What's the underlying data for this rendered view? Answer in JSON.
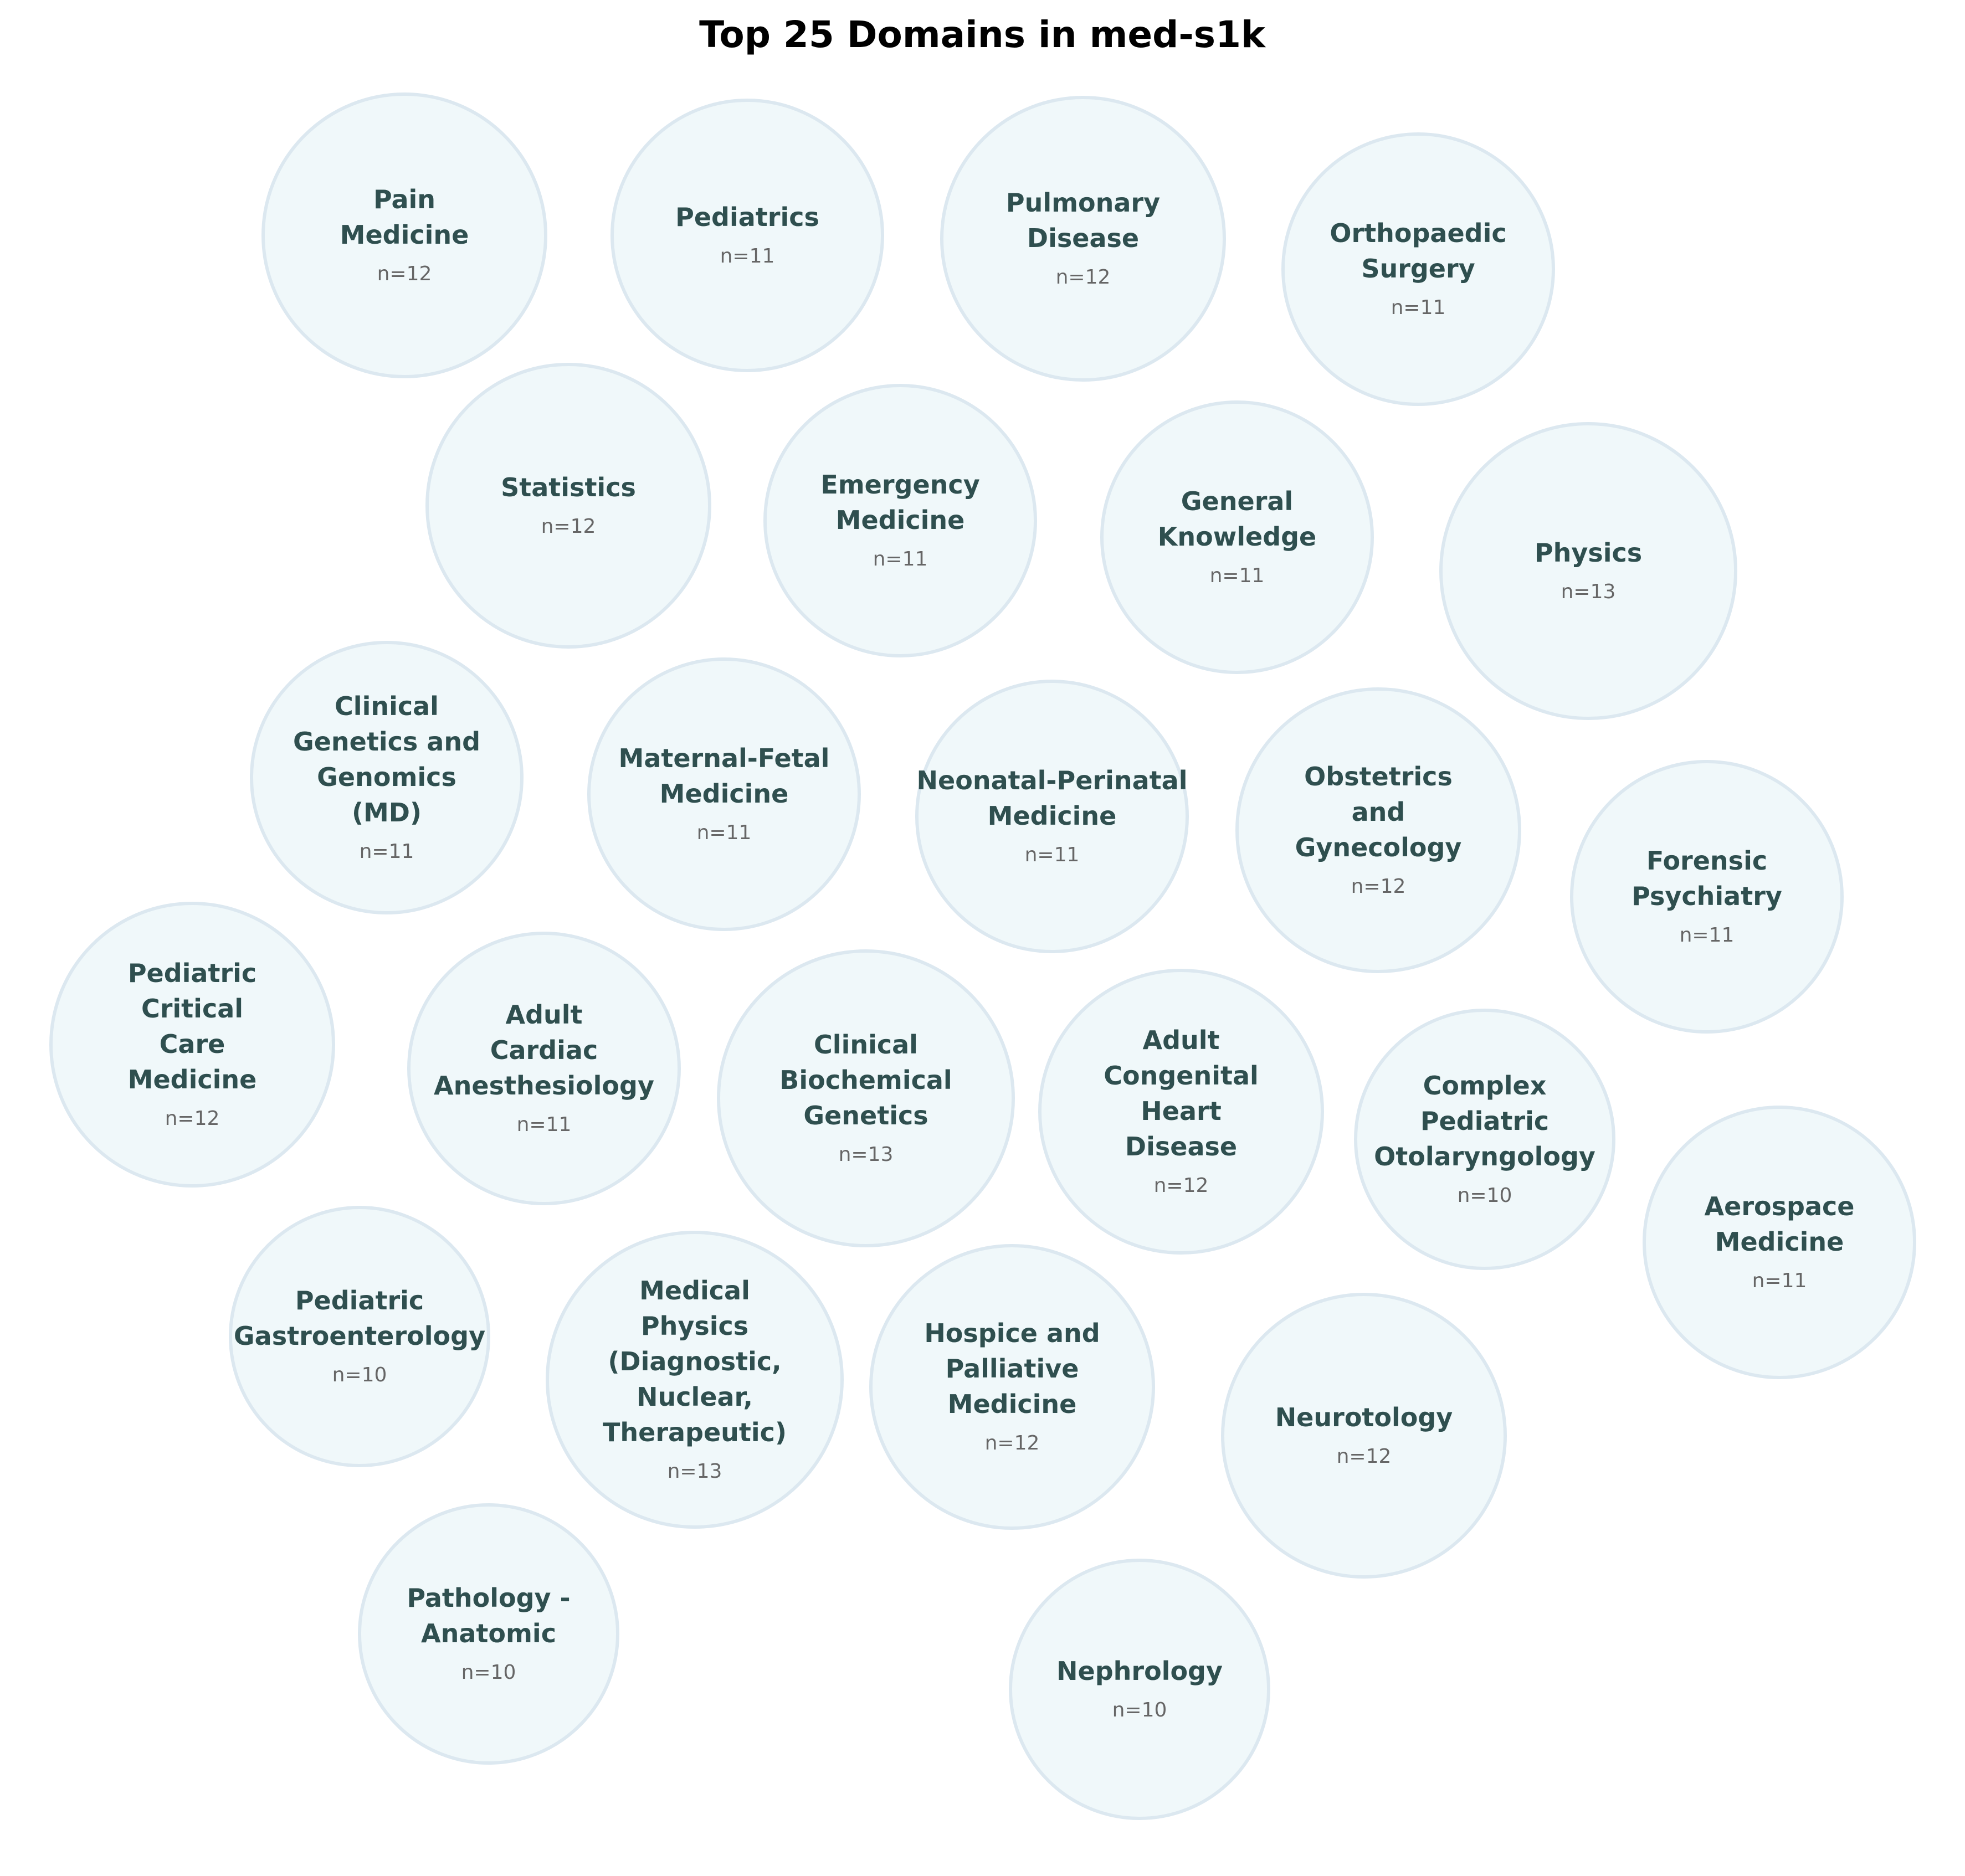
{
  "chart_data": {
    "type": "bubble",
    "title": "Top 25 Domains in med-s1k",
    "count_prefix": "n=",
    "colors": {
      "fill": "#f0f8fa",
      "stroke": "#dce8f0",
      "label": "#2f4f4f",
      "count": "#666666"
    },
    "items": [
      {
        "label": "Pain Medicine",
        "lines": [
          "Pain",
          "Medicine"
        ],
        "n": 12
      },
      {
        "label": "Pediatrics",
        "lines": [
          "Pediatrics"
        ],
        "n": 11
      },
      {
        "label": "Pulmonary Disease",
        "lines": [
          "Pulmonary",
          "Disease"
        ],
        "n": 12
      },
      {
        "label": "Orthopaedic Surgery",
        "lines": [
          "Orthopaedic",
          "Surgery"
        ],
        "n": 11
      },
      {
        "label": "Statistics",
        "lines": [
          "Statistics"
        ],
        "n": 12
      },
      {
        "label": "Emergency Medicine",
        "lines": [
          "Emergency",
          "Medicine"
        ],
        "n": 11
      },
      {
        "label": "General Knowledge",
        "lines": [
          "General",
          "Knowledge"
        ],
        "n": 11
      },
      {
        "label": "Physics",
        "lines": [
          "Physics"
        ],
        "n": 13
      },
      {
        "label": "Clinical Genetics and Genomics (MD)",
        "lines": [
          "Clinical",
          "Genetics and",
          "Genomics",
          "(MD)"
        ],
        "n": 11
      },
      {
        "label": "Maternal-Fetal Medicine",
        "lines": [
          "Maternal-Fetal",
          "Medicine"
        ],
        "n": 11
      },
      {
        "label": "Neonatal-Perinatal Medicine",
        "lines": [
          "Neonatal-Perinatal",
          "Medicine"
        ],
        "n": 11
      },
      {
        "label": "Obstetrics and Gynecology",
        "lines": [
          "Obstetrics",
          "and",
          "Gynecology"
        ],
        "n": 12
      },
      {
        "label": "Forensic Psychiatry",
        "lines": [
          "Forensic",
          "Psychiatry"
        ],
        "n": 11
      },
      {
        "label": "Pediatric Critical Care Medicine",
        "lines": [
          "Pediatric",
          "Critical",
          "Care",
          "Medicine"
        ],
        "n": 12
      },
      {
        "label": "Adult Cardiac Anesthesiology",
        "lines": [
          "Adult",
          "Cardiac",
          "Anesthesiology"
        ],
        "n": 11
      },
      {
        "label": "Clinical Biochemical Genetics",
        "lines": [
          "Clinical",
          "Biochemical",
          "Genetics"
        ],
        "n": 13
      },
      {
        "label": "Adult Congenital Heart Disease",
        "lines": [
          "Adult",
          "Congenital",
          "Heart",
          "Disease"
        ],
        "n": 12
      },
      {
        "label": "Complex Pediatric Otolaryngology",
        "lines": [
          "Complex",
          "Pediatric",
          "Otolaryngology"
        ],
        "n": 10
      },
      {
        "label": "Aerospace Medicine",
        "lines": [
          "Aerospace",
          "Medicine"
        ],
        "n": 11
      },
      {
        "label": "Pediatric Gastroenterology",
        "lines": [
          "Pediatric",
          "Gastroenterology"
        ],
        "n": 10
      },
      {
        "label": "Medical Physics (Diagnostic, Nuclear, Therapeutic)",
        "lines": [
          "Medical",
          "Physics",
          "(Diagnostic,",
          "Nuclear,",
          "Therapeutic)"
        ],
        "n": 13
      },
      {
        "label": "Hospice and Palliative Medicine",
        "lines": [
          "Hospice and",
          "Palliative",
          "Medicine"
        ],
        "n": 12
      },
      {
        "label": "Neurotology",
        "lines": [
          "Neurotology"
        ],
        "n": 12
      },
      {
        "label": "Pathology - Anatomic",
        "lines": [
          "Pathology -",
          "Anatomic"
        ],
        "n": 10
      },
      {
        "label": "Nephrology",
        "lines": [
          "Nephrology"
        ],
        "n": 10
      }
    ]
  }
}
